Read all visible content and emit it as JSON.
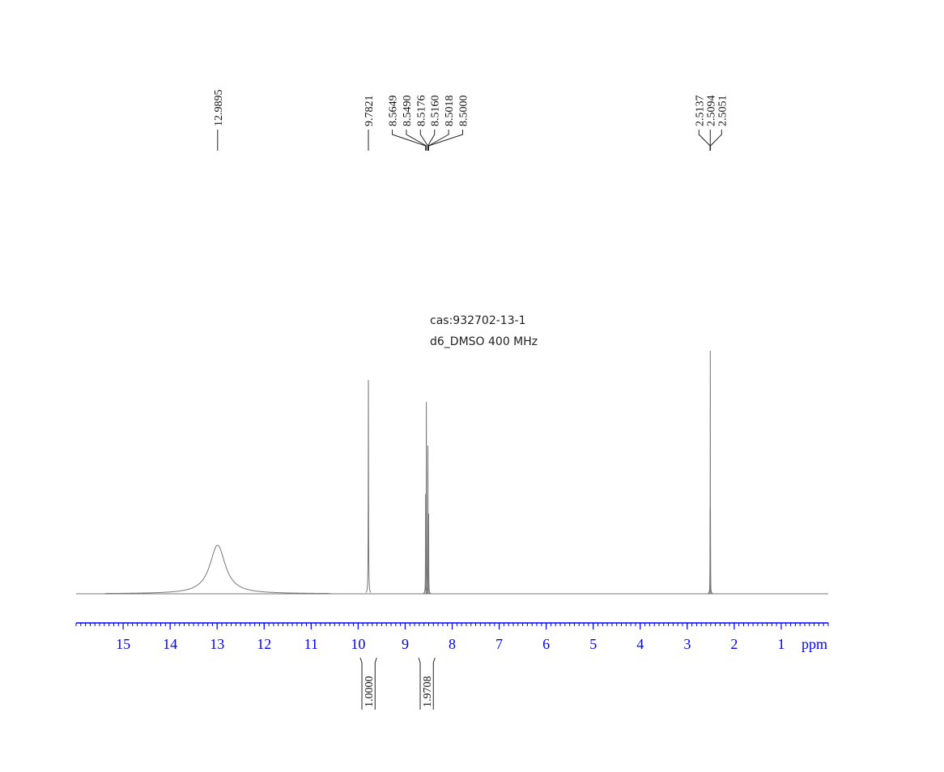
{
  "chart_data": {
    "type": "nmr",
    "annotations": [
      "cas:932702-13-1",
      "d6_DMSO  400 MHz"
    ],
    "x_label": "ppm",
    "xlim": [
      16,
      0
    ],
    "xticks": [
      15,
      14,
      13,
      12,
      11,
      10,
      9,
      8,
      7,
      6,
      5,
      4,
      3,
      2,
      1
    ],
    "xminor": 0.1,
    "ylim": [
      0,
      1
    ],
    "color": "#777777",
    "axis_color": "#0000ff",
    "peak_labels": [
      12.9895,
      9.7821,
      8.5649,
      8.549,
      8.5176,
      8.516,
      8.5018,
      {
        "value": 8.5,
        "label": "8.5000"
      },
      2.5137,
      2.5094,
      2.5051
    ],
    "peak_label_texts": [
      "12.9895",
      "9.7821",
      "8.5649",
      "8.5490",
      "8.5176",
      "8.5160",
      "8.5018",
      "8.5000",
      "2.5137",
      "2.5094",
      "2.5051"
    ],
    "peaks": [
      {
        "shift": 12.99,
        "height": 0.2,
        "width": 0.2
      },
      {
        "shift": 9.782,
        "height": 0.88,
        "width": 0.004
      },
      {
        "shift": 8.565,
        "height": 0.41,
        "width": 0.003
      },
      {
        "shift": 8.549,
        "height": 0.79,
        "width": 0.003
      },
      {
        "shift": 8.517,
        "height": 0.61,
        "width": 0.003
      },
      {
        "shift": 8.501,
        "height": 0.33,
        "width": 0.003
      },
      {
        "shift": 2.514,
        "height": 0.35,
        "width": 0.002
      },
      {
        "shift": 2.509,
        "height": 1.0,
        "width": 0.002
      },
      {
        "shift": 2.505,
        "height": 0.35,
        "width": 0.002
      }
    ],
    "integrals": [
      {
        "from": 9.92,
        "to": 9.64,
        "value": {
          "value": 1,
          "label": "1.0000"
        }
      },
      {
        "from": 8.68,
        "to": 8.4,
        "value": 1.9708
      }
    ]
  }
}
